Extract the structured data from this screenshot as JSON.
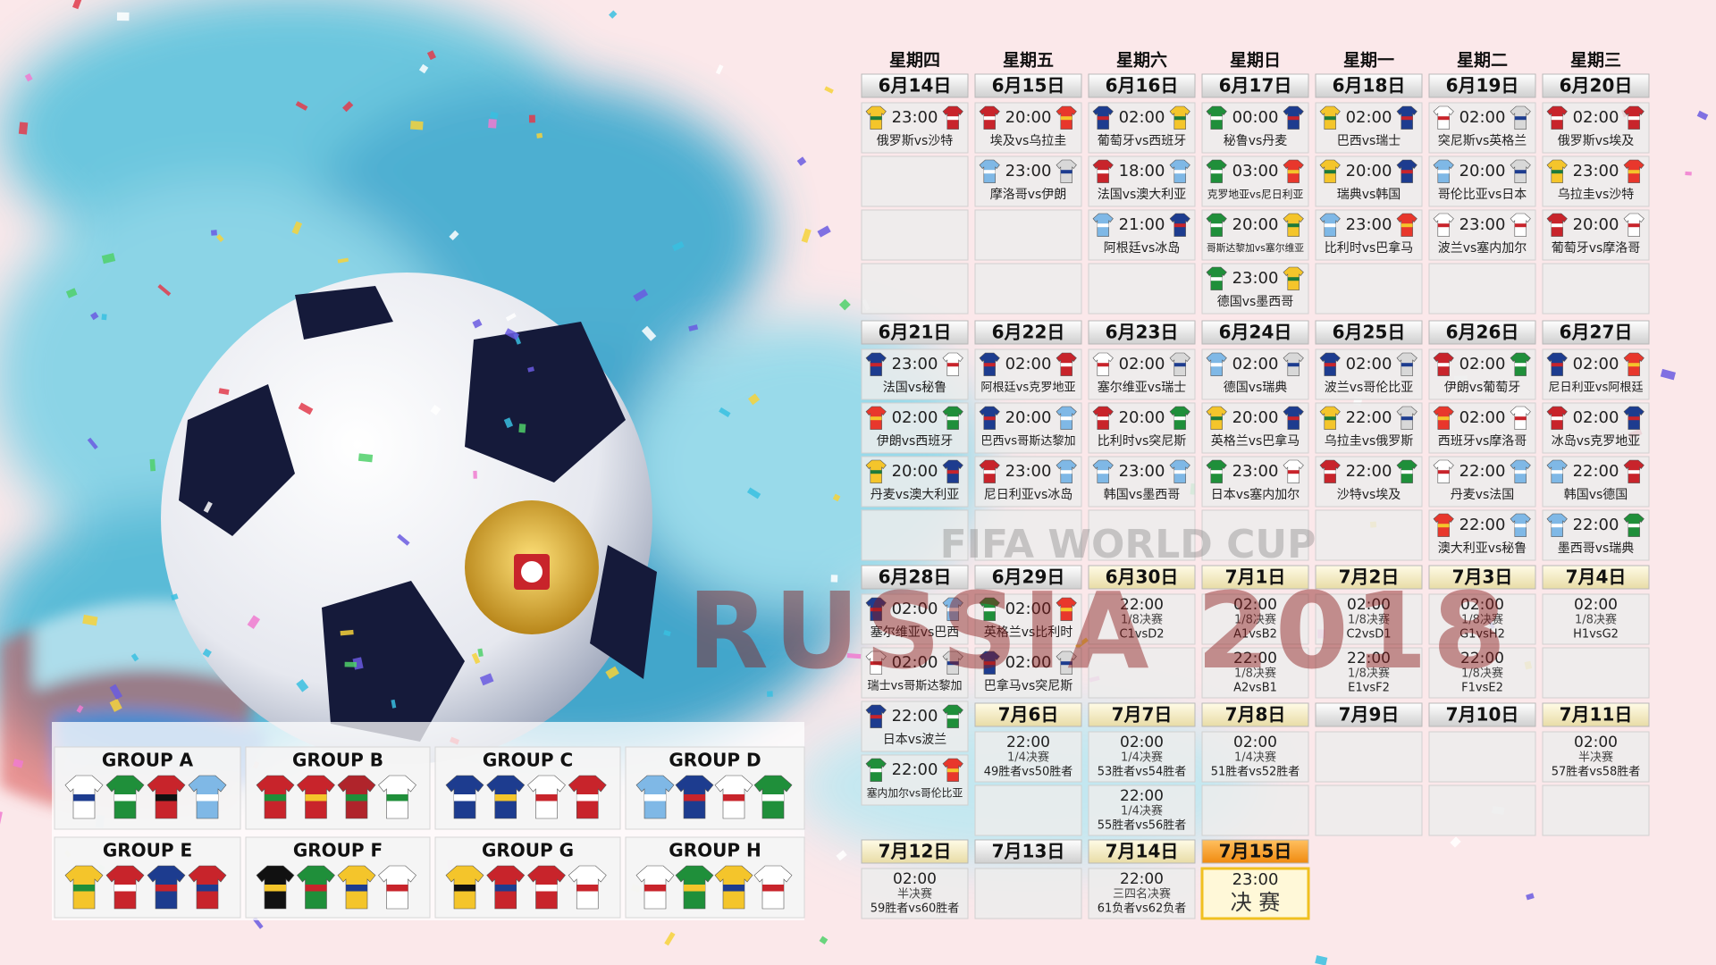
{
  "schedule": {
    "weekdays": [
      "星期四",
      "星期五",
      "星期六",
      "星期日",
      "星期一",
      "星期二",
      "星期三"
    ],
    "blocks": [
      {
        "days": [
          {
            "date": "6月14日",
            "matches": [
              {
                "time": "23:00",
                "teams": "俄罗斯vs沙特"
              }
            ]
          },
          {
            "date": "6月15日",
            "matches": [
              {
                "time": "20:00",
                "teams": "埃及vs乌拉圭"
              },
              {
                "time": "23:00",
                "teams": "摩洛哥vs伊朗"
              }
            ]
          },
          {
            "date": "6月16日",
            "matches": [
              {
                "time": "02:00",
                "teams": "葡萄牙vs西班牙"
              },
              {
                "time": "18:00",
                "teams": "法国vs澳大利亚"
              },
              {
                "time": "21:00",
                "teams": "阿根廷vs冰岛"
              }
            ]
          },
          {
            "date": "6月17日",
            "matches": [
              {
                "time": "00:00",
                "teams": "秘鲁vs丹麦"
              },
              {
                "time": "03:00",
                "teams": "克罗地亚vs尼日利亚"
              },
              {
                "time": "20:00",
                "teams": "哥斯达黎加vs塞尔维亚"
              },
              {
                "time": "23:00",
                "teams": "德国vs墨西哥"
              }
            ]
          },
          {
            "date": "6月18日",
            "matches": [
              {
                "time": "02:00",
                "teams": "巴西vs瑞士"
              },
              {
                "time": "20:00",
                "teams": "瑞典vs韩国"
              },
              {
                "time": "23:00",
                "teams": "比利时vs巴拿马"
              }
            ]
          },
          {
            "date": "6月19日",
            "matches": [
              {
                "time": "02:00",
                "teams": "突尼斯vs英格兰"
              },
              {
                "time": "20:00",
                "teams": "哥伦比亚vs日本"
              },
              {
                "time": "23:00",
                "teams": "波兰vs塞内加尔"
              }
            ]
          },
          {
            "date": "6月20日",
            "matches": [
              {
                "time": "02:00",
                "teams": "俄罗斯vs埃及"
              },
              {
                "time": "23:00",
                "teams": "乌拉圭vs沙特"
              },
              {
                "time": "20:00",
                "teams": "葡萄牙vs摩洛哥"
              }
            ]
          }
        ]
      },
      {
        "days": [
          {
            "date": "6月21日",
            "matches": [
              {
                "time": "23:00",
                "teams": "法国vs秘鲁"
              },
              {
                "time": "02:00",
                "teams": "伊朗vs西班牙"
              },
              {
                "time": "20:00",
                "teams": "丹麦vs澳大利亚"
              }
            ]
          },
          {
            "date": "6月22日",
            "matches": [
              {
                "time": "02:00",
                "teams": "阿根廷vs克罗地亚"
              },
              {
                "time": "20:00",
                "teams": "巴西vs哥斯达黎加"
              },
              {
                "time": "23:00",
                "teams": "尼日利亚vs冰岛"
              }
            ]
          },
          {
            "date": "6月23日",
            "matches": [
              {
                "time": "02:00",
                "teams": "塞尔维亚vs瑞士"
              },
              {
                "time": "20:00",
                "teams": "比利时vs突尼斯"
              },
              {
                "time": "23:00",
                "teams": "韩国vs墨西哥"
              }
            ]
          },
          {
            "date": "6月24日",
            "matches": [
              {
                "time": "02:00",
                "teams": "德国vs瑞典"
              },
              {
                "time": "20:00",
                "teams": "英格兰vs巴拿马"
              },
              {
                "time": "23:00",
                "teams": "日本vs塞内加尔"
              }
            ]
          },
          {
            "date": "6月25日",
            "matches": [
              {
                "time": "02:00",
                "teams": "波兰vs哥伦比亚"
              },
              {
                "time": "22:00",
                "teams": "乌拉圭vs俄罗斯"
              },
              {
                "time": "22:00",
                "teams": "沙特vs埃及"
              }
            ]
          },
          {
            "date": "6月26日",
            "matches": [
              {
                "time": "02:00",
                "teams": "伊朗vs葡萄牙"
              },
              {
                "time": "02:00",
                "teams": "西班牙vs摩洛哥"
              },
              {
                "time": "22:00",
                "teams": "丹麦vs法国"
              },
              {
                "time": "22:00",
                "teams": "澳大利亚vs秘鲁"
              }
            ]
          },
          {
            "date": "6月27日",
            "matches": [
              {
                "time": "02:00",
                "teams": "尼日利亚vs阿根廷"
              },
              {
                "time": "02:00",
                "teams": "冰岛vs克罗地亚"
              },
              {
                "time": "22:00",
                "teams": "韩国vs德国"
              },
              {
                "time": "22:00",
                "teams": "墨西哥vs瑞典"
              }
            ]
          }
        ]
      },
      {
        "days": [
          {
            "date": "6月28日",
            "matches": [
              {
                "time": "02:00",
                "teams": "塞尔维亚vs巴西"
              },
              {
                "time": "02:00",
                "teams": "瑞士vs哥斯达黎加"
              },
              {
                "time": "22:00",
                "teams": "日本vs波兰"
              },
              {
                "time": "22:00",
                "teams": "塞内加尔vs哥伦比亚"
              }
            ]
          },
          {
            "date": "6月29日",
            "matches": [
              {
                "time": "02:00",
                "teams": "英格兰vs比利时"
              },
              {
                "time": "02:00",
                "teams": "巴拿马vs突尼斯"
              }
            ]
          },
          {
            "date": "6月30日",
            "matches": [
              {
                "time": "22:00",
                "stage": "1/8决赛",
                "teams": "C1vsD2"
              }
            ]
          },
          {
            "date": "7月1日",
            "matches": [
              {
                "time": "02:00",
                "stage": "1/8决赛",
                "teams": "A1vsB2"
              },
              {
                "time": "22:00",
                "stage": "1/8决赛",
                "teams": "A2vsB1"
              }
            ]
          },
          {
            "date": "7月2日",
            "matches": [
              {
                "time": "02:00",
                "stage": "1/8决赛",
                "teams": "C2vsD1"
              },
              {
                "time": "22:00",
                "stage": "1/8决赛",
                "teams": "E1vsF2"
              }
            ]
          },
          {
            "date": "7月3日",
            "matches": [
              {
                "time": "02:00",
                "stage": "1/8决赛",
                "teams": "G1vsH2"
              },
              {
                "time": "22:00",
                "stage": "1/8决赛",
                "teams": "F1vsE2"
              }
            ]
          },
          {
            "date": "7月4日",
            "matches": [
              {
                "time": "02:00",
                "stage": "1/8决赛",
                "teams": "H1vsG2"
              }
            ]
          }
        ]
      },
      {
        "days": [
          {
            "date": "7月6日",
            "matches": [
              {
                "time": "22:00",
                "stage": "1/4决赛",
                "teams": "49胜者vs50胜者"
              }
            ]
          },
          {
            "date": "7月7日",
            "matches": [
              {
                "time": "02:00",
                "stage": "1/4决赛",
                "teams": "53胜者vs54胜者"
              },
              {
                "time": "22:00",
                "stage": "1/4决赛",
                "teams": "55胜者vs56胜者"
              }
            ]
          },
          {
            "date": "7月8日",
            "matches": [
              {
                "time": "02:00",
                "stage": "1/4决赛",
                "teams": "51胜者vs52胜者"
              }
            ]
          },
          {
            "date": "7月9日",
            "matches": []
          },
          {
            "date": "7月10日",
            "matches": []
          },
          {
            "date": "7月11日",
            "matches": [
              {
                "time": "02:00",
                "stage": "半决赛",
                "teams": "57胜者vs58胜者"
              }
            ]
          }
        ]
      },
      {
        "days": [
          {
            "date": "7月12日",
            "matches": [
              {
                "time": "02:00",
                "stage": "半决赛",
                "teams": "59胜者vs60胜者"
              }
            ]
          },
          {
            "date": "7月13日",
            "matches": []
          },
          {
            "date": "7月14日",
            "matches": [
              {
                "time": "22:00",
                "stage": "三四名决赛",
                "teams": "61负者vs62负者"
              }
            ]
          },
          {
            "date": "7月15日",
            "matches": [
              {
                "time": "23:00",
                "stage": "决 赛"
              }
            ]
          }
        ]
      }
    ]
  },
  "watermark": {
    "line1": "FIFA WORLD CUP",
    "line2": "RUSSIA 2018"
  },
  "groups": [
    "GROUP A",
    "GROUP B",
    "GROUP C",
    "GROUP D",
    "GROUP E",
    "GROUP F",
    "GROUP G",
    "GROUP H"
  ]
}
